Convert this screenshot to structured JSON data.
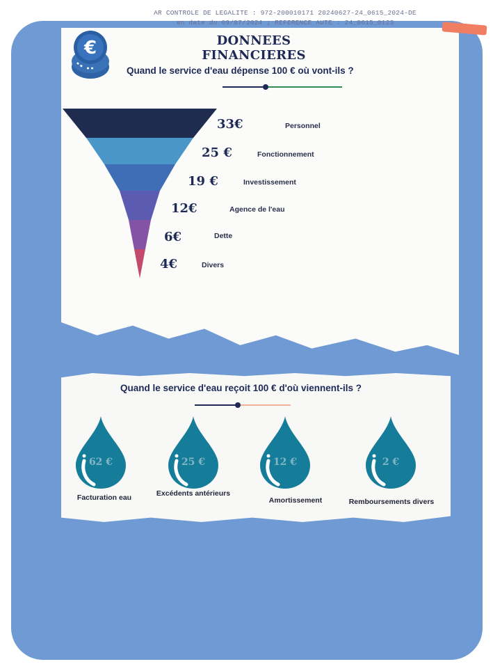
{
  "stamp": {
    "line1": "AR CONTROLE DE LEGALITE : 972-200010171 20240627-24_0615_2024-DE",
    "line2": "en date du 09/07/2024 ; REFERENCE AUTE : 24_0615_0123"
  },
  "header": {
    "title": "DONNEES FINANCIERES",
    "icon": "euro-coin-icon"
  },
  "spending": {
    "question": "Quand le service d'eau dépense 100 € où vont-ils ?",
    "items": [
      {
        "amount": "33€",
        "label": "Personnel",
        "value": 33,
        "color": "#1f2b4f"
      },
      {
        "amount": "25 €",
        "label": "Fonctionnement",
        "value": 25,
        "color": "#4a96c8"
      },
      {
        "amount": "19 €",
        "label": "Investissement",
        "value": 19,
        "color": "#3f6eb6"
      },
      {
        "amount": "12€",
        "label": "Agence de l'eau",
        "value": 12,
        "color": "#5a5bb1"
      },
      {
        "amount": "6€",
        "label": "Dette",
        "value": 6,
        "color": "#8453a6"
      },
      {
        "amount": "4€",
        "label": "Divers",
        "value": 4,
        "color": "#c24a6a"
      }
    ]
  },
  "income": {
    "question": "Quand le service d'eau reçoit 100 € d'où viennent-ils ?",
    "items": [
      {
        "amount": "62 €",
        "label": "Facturation eau",
        "value": 62
      },
      {
        "amount": "25 €",
        "label": "Excédents antérieurs",
        "value": 25
      },
      {
        "amount": "12 €",
        "label": "Amortissement",
        "value": 12
      },
      {
        "amount": "2 €",
        "label": "Remboursements divers",
        "value": 2
      }
    ],
    "drop_color": "#157d99"
  }
}
